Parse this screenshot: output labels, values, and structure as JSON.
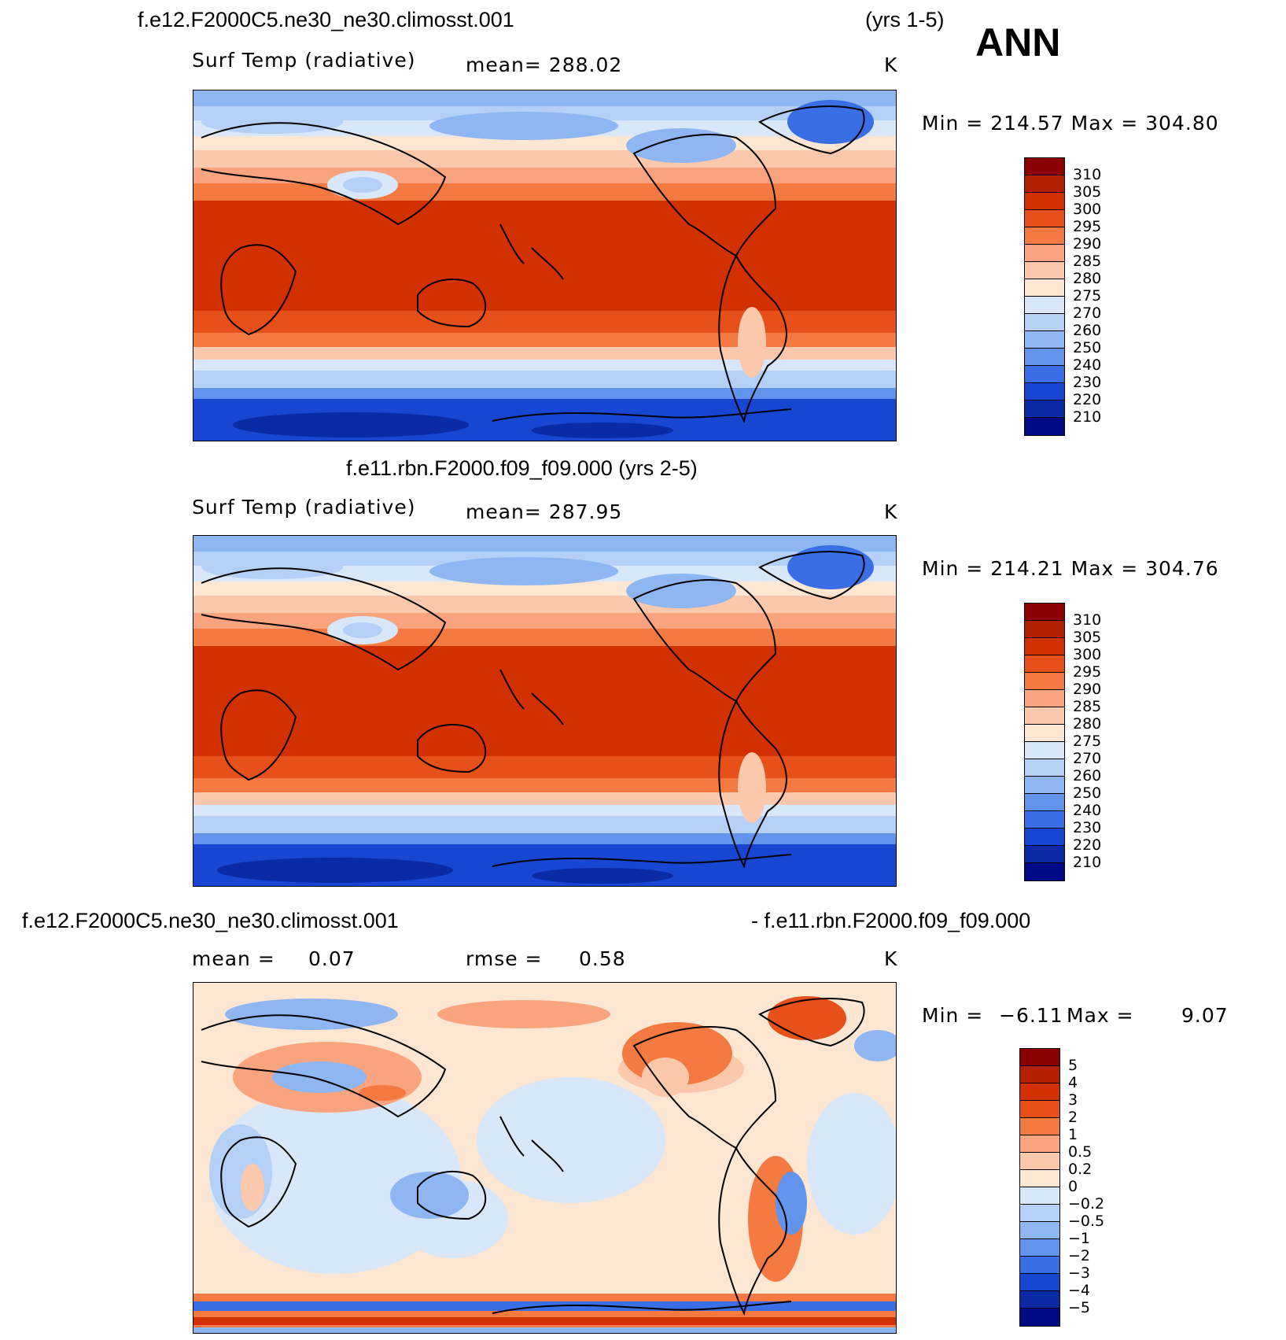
{
  "season": "ANN",
  "panels": [
    {
      "header_left": "f.e12.F2000C5.ne30_ne30.climosst.001",
      "header_right": "(yrs 1-5)",
      "variable": "Surf Temp (radiative)",
      "stat_text": "mean=  288.02",
      "units": "K",
      "minmax": "Min  =  214.57  Max  =  304.80"
    },
    {
      "header_center": "f.e11.rbn.F2000.f09_f09.000 (yrs 2-5)",
      "variable": "Surf Temp (radiative)",
      "stat_text": "mean=  287.95",
      "units": "K",
      "minmax": "Min  =  214.21  Max  =  304.76"
    },
    {
      "header_left": "f.e12.F2000C5.ne30_ne30.climosst.001",
      "header_right": "- f.e11.rbn.F2000.f09_f09.000",
      "stat1_label": "mean  =",
      "stat1_value": "0.07",
      "stat2_label": "rmse  =",
      "stat2_value": "0.58",
      "units": "K",
      "minmax_min_label": "Min  =",
      "minmax_min": "−6.11",
      "minmax_max_label": "Max  =",
      "minmax_max": "9.07"
    }
  ],
  "colorbars": {
    "temp": {
      "labels": [
        "310",
        "305",
        "300",
        "295",
        "290",
        "285",
        "280",
        "275",
        "270",
        "260",
        "250",
        "240",
        "230",
        "220",
        "210"
      ],
      "colors": [
        "#8b0000",
        "#b22000",
        "#d33000",
        "#e8501a",
        "#f47a42",
        "#f9a47e",
        "#fcc8ac",
        "#fde6d2",
        "#d8e8fa",
        "#b4d0f6",
        "#8eb6f2",
        "#6294ee",
        "#3a6ee6",
        "#1646d2",
        "#0a2aa6",
        "#000a84"
      ]
    },
    "diff": {
      "labels": [
        "5",
        "4",
        "3",
        "2",
        "1",
        "0.5",
        "0.2",
        "0",
        "−0.2",
        "−0.5",
        "−1",
        "−2",
        "−3",
        "−4",
        "−5"
      ],
      "colors": [
        "#8b0000",
        "#b22000",
        "#d33000",
        "#e8501a",
        "#f47a42",
        "#f9a47e",
        "#fcc8ac",
        "#fde6d2",
        "#d8e8fa",
        "#b4d0f6",
        "#8eb6f2",
        "#6294ee",
        "#3a6ee6",
        "#1646d2",
        "#0a2aa6",
        "#000a84"
      ]
    }
  }
}
